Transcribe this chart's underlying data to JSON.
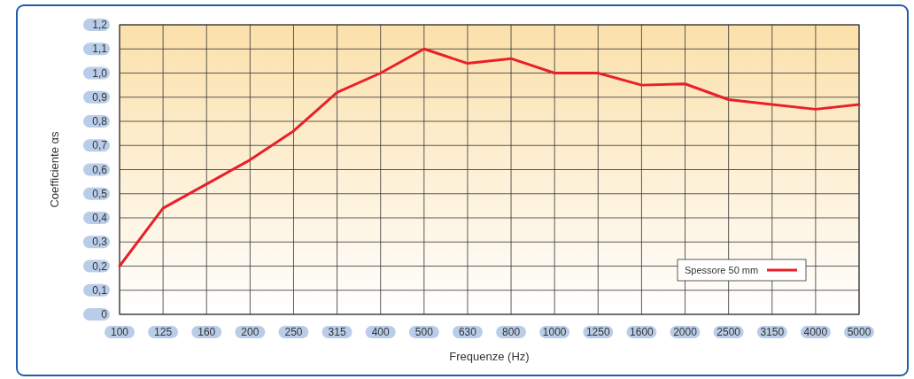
{
  "chart_data": {
    "type": "line",
    "xlabel": "Frequenze (Hz)",
    "ylabel": "Coefficiente αs",
    "categories": [
      "100",
      "125",
      "160",
      "200",
      "250",
      "315",
      "400",
      "500",
      "630",
      "800",
      "1000",
      "1250",
      "1600",
      "2000",
      "2500",
      "3150",
      "4000",
      "5000"
    ],
    "series": [
      {
        "name": "Spessore 50 mm",
        "color": "#e8202a",
        "values": [
          0.2,
          0.44,
          0.54,
          0.64,
          0.76,
          0.92,
          1.0,
          1.1,
          1.04,
          1.06,
          1.0,
          1.0,
          0.95,
          0.955,
          0.89,
          0.87,
          0.85,
          0.87
        ]
      }
    ],
    "ylim": [
      0,
      1.2
    ],
    "yticks": [
      {
        "value": 0,
        "label": "0"
      },
      {
        "value": 0.1,
        "label": "0,1"
      },
      {
        "value": 0.2,
        "label": "0,2"
      },
      {
        "value": 0.3,
        "label": "0,3"
      },
      {
        "value": 0.4,
        "label": "0,4"
      },
      {
        "value": 0.5,
        "label": "0,5"
      },
      {
        "value": 0.6,
        "label": "0,6"
      },
      {
        "value": 0.7,
        "label": "0,7"
      },
      {
        "value": 0.8,
        "label": "0,8"
      },
      {
        "value": 0.9,
        "label": "0,9"
      },
      {
        "value": 1.0,
        "label": "1,0"
      },
      {
        "value": 1.1,
        "label": "1,1"
      },
      {
        "value": 1.2,
        "label": "1,2"
      }
    ],
    "grid": true,
    "legend": "bottom right",
    "marker": "none",
    "line_style": "solid"
  }
}
